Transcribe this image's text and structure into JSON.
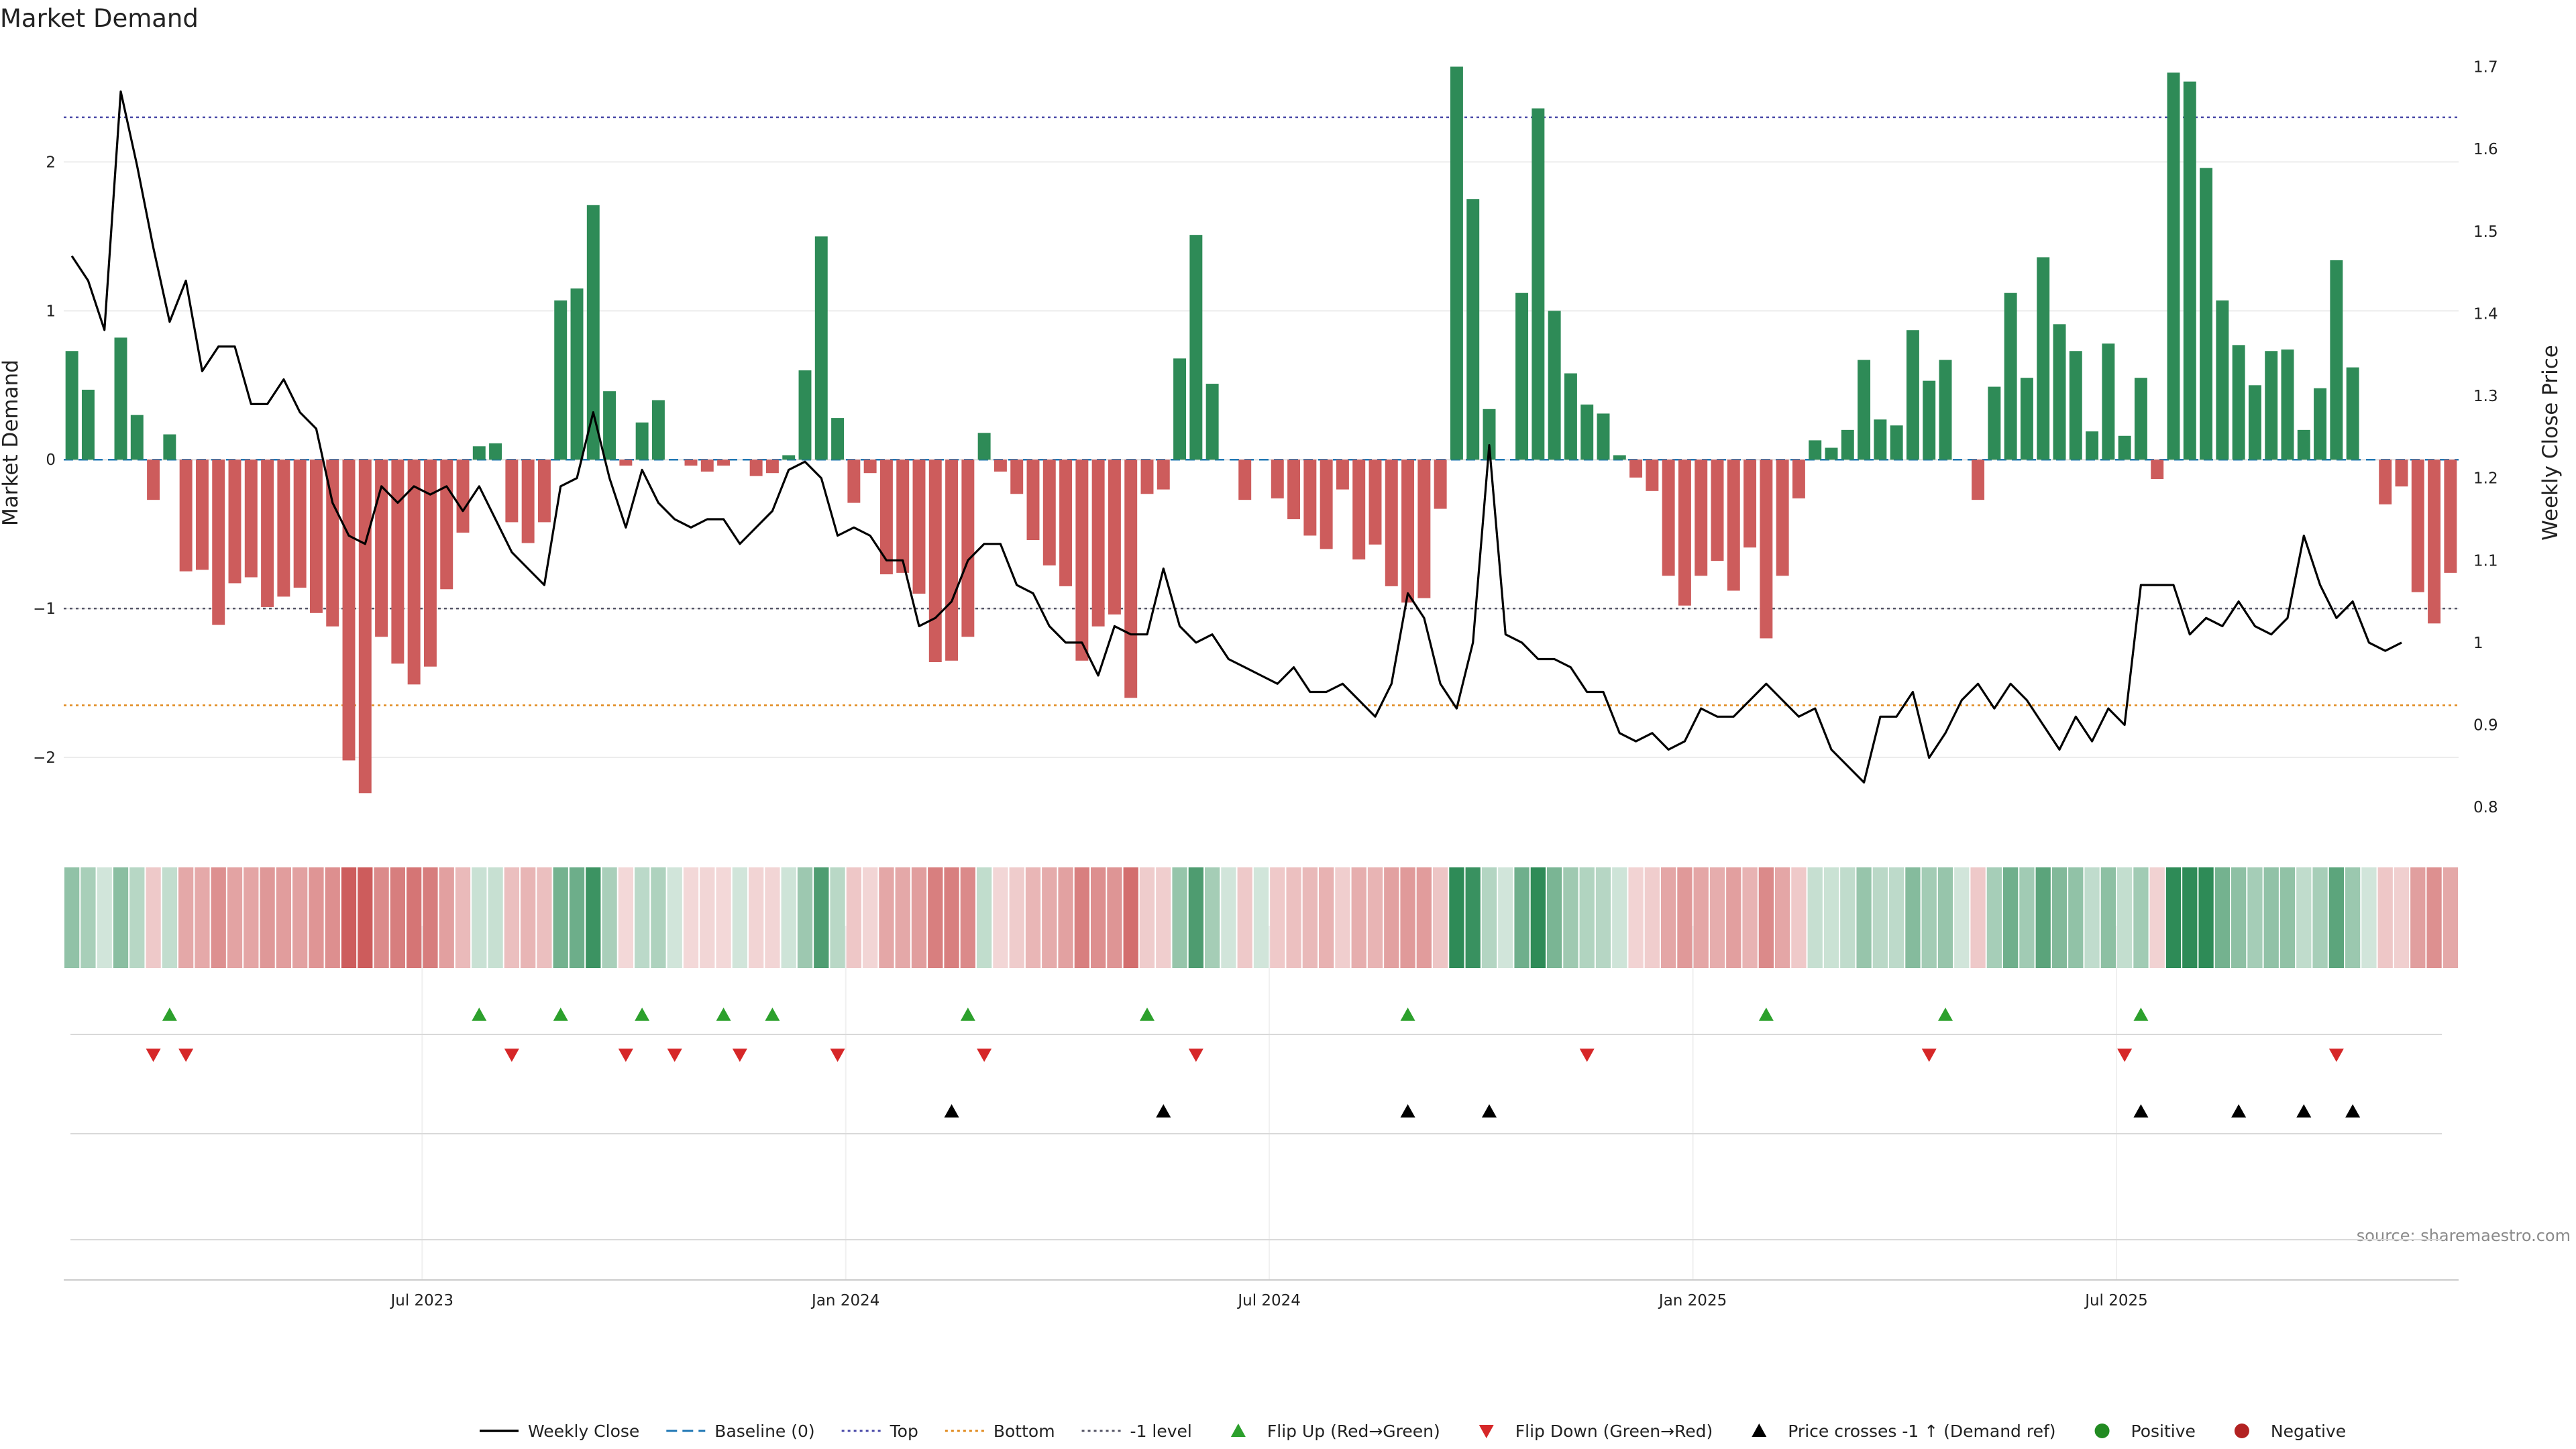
{
  "chart_data": {
    "type": "bar",
    "title": "Market Demand",
    "ylabel": "Market Demand",
    "y2label": "Weekly Close Price",
    "source": "source: sharemaestro.com",
    "ylim": [
      -2.5,
      2.75
    ],
    "y2lim": [
      0.77,
      1.72
    ],
    "yticks": [
      2,
      1,
      0,
      -1,
      -2
    ],
    "ytick_labels": [
      "2",
      "1",
      "0",
      "−1",
      "−2"
    ],
    "y2ticks": [
      1.7,
      1.6,
      1.5,
      1.4,
      1.3,
      1.2,
      1.1,
      1.0,
      0.9,
      0.8
    ],
    "y2tick_labels": [
      "1.7",
      "1.6",
      "1.5",
      "1.4",
      "1.3",
      "1.2",
      "1.1",
      "1",
      "0.9",
      "0.8"
    ],
    "xticks": [
      {
        "week": 22,
        "label": "Jul 2023"
      },
      {
        "week": 48,
        "label": "Jan 2024"
      },
      {
        "week": 74,
        "label": "Jul 2024"
      },
      {
        "week": 100,
        "label": "Jan 2025"
      },
      {
        "week": 126,
        "label": "Jul 2025"
      }
    ],
    "reference_lines": {
      "top": 2.3,
      "bottom": -1.65,
      "minus_one": -1,
      "baseline": 0
    },
    "colors": {
      "positive": "#2e8b57",
      "negative": "#cd5c5c",
      "price": "#000000",
      "top_line": "#4a4aa8",
      "bottom_line": "#e08a1e",
      "minus_one_line": "#555566",
      "baseline": "#1f77b4",
      "flip_up": "#2ca02c",
      "flip_down": "#d62728",
      "price_cross": "#000000",
      "positive_dot": "#228b22",
      "negative_dot": "#b22222"
    },
    "series": [
      {
        "name": "Market Demand",
        "values": [
          0.73,
          0.47,
          0.0,
          0.82,
          0.3,
          -0.27,
          0.17,
          -0.75,
          -0.74,
          -1.11,
          -0.83,
          -0.79,
          -0.99,
          -0.92,
          -0.86,
          -1.03,
          -1.12,
          -2.02,
          -2.24,
          -1.19,
          -1.37,
          -1.51,
          -1.39,
          -0.87,
          -0.49,
          0.09,
          0.11,
          -0.42,
          -0.56,
          -0.42,
          1.07,
          1.15,
          1.71,
          0.46,
          -0.04,
          0.25,
          0.4,
          0.0,
          -0.04,
          -0.08,
          -0.04,
          0.0,
          -0.11,
          -0.09,
          0.03,
          0.6,
          1.5,
          0.28,
          -0.29,
          -0.09,
          -0.77,
          -0.76,
          -0.9,
          -1.36,
          -1.35,
          -1.19,
          0.18,
          -0.08,
          -0.23,
          -0.54,
          -0.71,
          -0.85,
          -1.35,
          -1.12,
          -1.04,
          -1.6,
          -0.23,
          -0.2,
          0.68,
          1.51,
          0.51,
          0.0,
          -0.27,
          0.0,
          -0.26,
          -0.4,
          -0.51,
          -0.6,
          -0.2,
          -0.67,
          -0.57,
          -0.85,
          -0.96,
          -0.93,
          -0.33,
          2.64,
          1.75,
          0.34,
          0.0,
          1.12,
          2.36,
          1.0,
          0.58,
          0.37,
          0.31,
          0.03,
          -0.12,
          -0.21,
          -0.78,
          -0.98,
          -0.78,
          -0.68,
          -0.88,
          -0.59,
          -1.2,
          -0.78,
          -0.26,
          0.13,
          0.08,
          0.2,
          0.67,
          0.27,
          0.23,
          0.87,
          0.53,
          0.67,
          0.0,
          -0.27,
          0.49,
          1.12,
          0.55,
          1.36,
          0.91,
          0.73,
          0.19,
          0.78,
          0.16,
          0.55,
          -0.13,
          2.6,
          2.54,
          1.96,
          1.07,
          0.77,
          0.5,
          0.73,
          0.74,
          0.2,
          0.48,
          1.34,
          0.62,
          0.0,
          -0.3,
          -0.18,
          -0.89,
          -1.1,
          -0.76
        ]
      },
      {
        "name": "Weekly Close",
        "values": [
          1.47,
          1.44,
          1.38,
          1.67,
          1.58,
          1.48,
          1.39,
          1.44,
          1.33,
          1.36,
          1.36,
          1.29,
          1.29,
          1.32,
          1.28,
          1.26,
          1.17,
          1.13,
          1.12,
          1.19,
          1.17,
          1.19,
          1.18,
          1.19,
          1.16,
          1.19,
          1.15,
          1.11,
          1.09,
          1.07,
          1.19,
          1.2,
          1.28,
          1.2,
          1.14,
          1.21,
          1.17,
          1.15,
          1.14,
          1.15,
          1.15,
          1.12,
          1.14,
          1.16,
          1.21,
          1.22,
          1.2,
          1.13,
          1.14,
          1.13,
          1.1,
          1.1,
          1.02,
          1.03,
          1.05,
          1.1,
          1.12,
          1.12,
          1.07,
          1.06,
          1.02,
          1.0,
          1.0,
          0.96,
          1.02,
          1.01,
          1.01,
          1.09,
          1.02,
          1.0,
          1.01,
          0.98,
          0.97,
          0.96,
          0.95,
          0.97,
          0.94,
          0.94,
          0.95,
          0.93,
          0.91,
          0.95,
          1.06,
          1.03,
          0.95,
          0.92,
          1.0,
          1.24,
          1.01,
          1.0,
          0.98,
          0.98,
          0.97,
          0.94,
          0.94,
          0.89,
          0.88,
          0.89,
          0.87,
          0.88,
          0.92,
          0.91,
          0.91,
          0.93,
          0.95,
          0.93,
          0.91,
          0.92,
          0.87,
          0.85,
          0.83,
          0.91,
          0.91,
          0.94,
          0.86,
          0.89,
          0.93,
          0.95,
          0.92,
          0.95,
          0.93,
          0.9,
          0.87,
          0.91,
          0.88,
          0.92,
          0.9,
          1.07,
          1.07,
          1.07,
          1.01,
          1.03,
          1.02,
          1.05,
          1.02,
          1.01,
          1.03,
          1.13,
          1.07,
          1.03,
          1.05,
          1.0,
          0.99,
          1.0
        ]
      }
    ],
    "flip_up_weeks": [
      6,
      25,
      30,
      35,
      40,
      43,
      55,
      66,
      82,
      104,
      115,
      127
    ],
    "flip_down_weeks": [
      5,
      7,
      27,
      34,
      37,
      41,
      47,
      56,
      69,
      93,
      114,
      126,
      139
    ],
    "price_cross_weeks": [
      54,
      67,
      82,
      87,
      127,
      133,
      137,
      140
    ],
    "legend": [
      {
        "label": "Weekly Close",
        "symbol": "line"
      },
      {
        "label": "Baseline (0)",
        "symbol": "dashed"
      },
      {
        "label": "Top",
        "symbol": "dotted-top"
      },
      {
        "label": "Bottom",
        "symbol": "dotted-bottom"
      },
      {
        "label": "-1 level",
        "symbol": "dotted-minus-one"
      },
      {
        "label": "Flip Up (Red→Green)",
        "symbol": "triangle-up"
      },
      {
        "label": "Flip Down (Green→Red)",
        "symbol": "triangle-down"
      },
      {
        "label": "Price crosses -1 ↑ (Demand ref)",
        "symbol": "triangle-black"
      },
      {
        "label": "Positive",
        "symbol": "dot-positive"
      },
      {
        "label": "Negative",
        "symbol": "dot-negative"
      }
    ]
  }
}
